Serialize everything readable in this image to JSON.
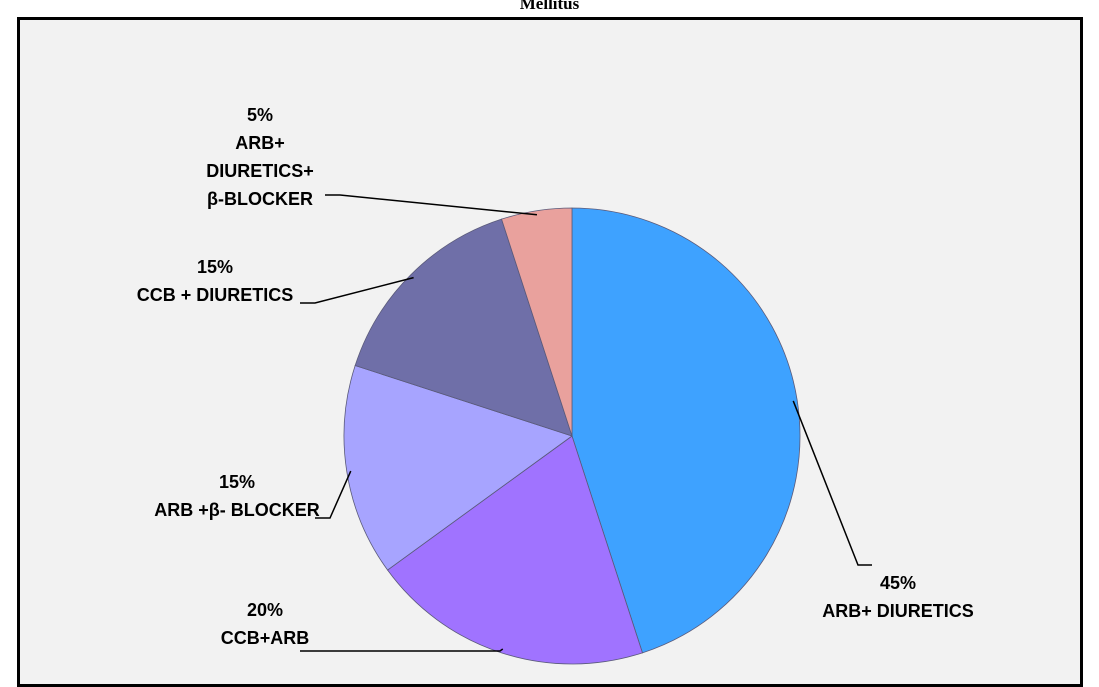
{
  "chart_data": {
    "type": "pie",
    "title": "Mellitus",
    "categories": [
      "ARB+ DIURETICS",
      "CCB+ARB",
      "ARB +β- BLOCKER",
      "CCB + DIURETICS",
      "ARB+\nDIURETICS+\nβ-BLOCKER"
    ],
    "values": [
      45,
      20,
      15,
      15,
      5
    ],
    "value_labels": [
      "45%",
      "20%",
      "15%",
      "15%",
      "5%"
    ],
    "colors": [
      "#3ea2ff",
      "#a073ff",
      "#a7a4ff",
      "#6f6fa8",
      "#e9a19d"
    ]
  }
}
